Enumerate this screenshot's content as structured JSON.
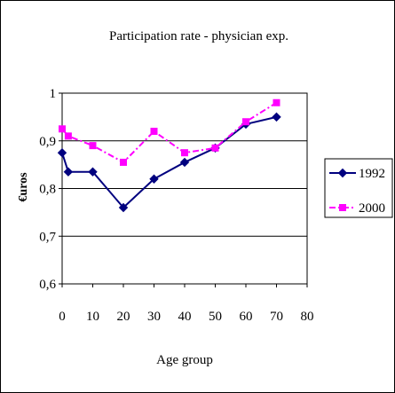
{
  "chart_data": {
    "type": "line",
    "title": "Participation rate - physician exp.",
    "xlabel": "Age group",
    "ylabel": "€uros",
    "xlim": [
      0,
      80
    ],
    "ylim": [
      0.6,
      1
    ],
    "x_ticks": [
      "0",
      "10",
      "20",
      "30",
      "40",
      "50",
      "60",
      "70",
      "80"
    ],
    "y_ticks": [
      "0,6",
      "0,7",
      "0,8",
      "0,9",
      "1"
    ],
    "grid": "horizontal",
    "legend_position": "right",
    "series": [
      {
        "name": "1992",
        "color": "#00007f",
        "marker": "diamond",
        "line_style": "solid",
        "points": [
          [
            0,
            0.875
          ],
          [
            2,
            0.835
          ],
          [
            10,
            0.835
          ],
          [
            20,
            0.76
          ],
          [
            30,
            0.82
          ],
          [
            40,
            0.855
          ],
          [
            50,
            0.885
          ],
          [
            60,
            0.935
          ],
          [
            70,
            0.95
          ]
        ]
      },
      {
        "name": "2000",
        "color": "#ff00ff",
        "marker": "square",
        "line_style": "dash-dot",
        "points": [
          [
            0,
            0.925
          ],
          [
            2,
            0.91
          ],
          [
            10,
            0.89
          ],
          [
            20,
            0.855
          ],
          [
            30,
            0.92
          ],
          [
            40,
            0.875
          ],
          [
            50,
            0.885
          ],
          [
            60,
            0.94
          ],
          [
            70,
            0.98
          ]
        ]
      }
    ]
  }
}
